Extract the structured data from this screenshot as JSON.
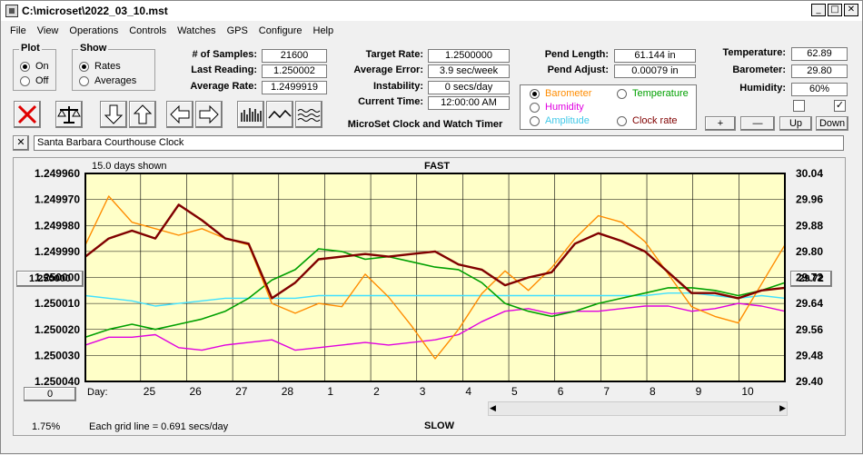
{
  "window": {
    "title": "C:\\microset\\2022_03_10.mst"
  },
  "menu": [
    "File",
    "View",
    "Operations",
    "Controls",
    "Watches",
    "GPS",
    "Configure",
    "Help"
  ],
  "plot_group": {
    "title": "Plot",
    "options": [
      "On",
      "Off"
    ],
    "selected": "On"
  },
  "show_group": {
    "title": "Show",
    "options": [
      "Rates",
      "Averages"
    ],
    "selected": "Rates"
  },
  "stats": {
    "samples_label": "# of Samples:",
    "samples": "21600",
    "last_label": "Last Reading:",
    "last": "1.250002",
    "avg_label": "Average Rate:",
    "avg": "1.2499919"
  },
  "targets": {
    "target_label": "Target Rate:",
    "target": "1.2500000",
    "error_label": "Average Error:",
    "error": "3.9 sec/week",
    "instab_label": "Instability:",
    "instab": "0 secs/day",
    "time_label": "Current Time:",
    "time": "12:00:00 AM"
  },
  "app_caption": "MicroSet Clock and Watch Timer",
  "pend": {
    "length_label": "Pend Length:",
    "length": "61.144 in",
    "adjust_label": "Pend Adjust:",
    "adjust": "0.00079 in"
  },
  "env": {
    "temp_label": "Temperature:",
    "temp": "62.89",
    "baro_label": "Barometer:",
    "baro": "29.80",
    "hum_label": "Humidity:",
    "hum": "60%"
  },
  "legend": {
    "barometer": "Barometer",
    "temperature": "Temperature",
    "humidity": "Humidity",
    "amplitude": "Amplitude",
    "clock_rate": "Clock rate",
    "selected": "Barometer"
  },
  "small_buttons": {
    "plus": "+",
    "minus": "—",
    "up": "Up",
    "down": "Down"
  },
  "checkboxes": {
    "left": "",
    "right": "✓"
  },
  "clock_name": "Santa Barbara Courthouse Clock",
  "close_x": "✕",
  "chart_header": {
    "days_shown": "15.0 days shown",
    "fast": "FAST",
    "slow": "SLOW",
    "grid_note": "Each grid line = 0.691 secs/day",
    "zoom": "1.75%",
    "day_label": "Day:"
  },
  "side_buttons": {
    "center_left": "1.250000",
    "center_right": "29.72",
    "offset": "0"
  },
  "colors": {
    "plot_bg": "#ffffc8",
    "barometer": "#ff8c00",
    "clock_rate": "#800000",
    "temperature": "#00a000",
    "humidity": "#e000e0",
    "amplitude": "#40e0ff"
  },
  "chart_data": {
    "type": "line",
    "title": "",
    "y_left_ticks": [
      "1.249960",
      "1.249970",
      "1.249980",
      "1.249990",
      "1.250000",
      "1.250010",
      "1.250020",
      "1.250030",
      "1.250040"
    ],
    "y_right_ticks": [
      "30.04",
      "29.96",
      "29.88",
      "29.80",
      "29.72",
      "29.64",
      "29.56",
      "29.48",
      "29.40"
    ],
    "x_ticks": [
      "25",
      "26",
      "27",
      "28",
      "1",
      "2",
      "3",
      "4",
      "5",
      "6",
      "7",
      "8",
      "9",
      "10"
    ],
    "ylim_left": [
      1.24996,
      1.25004
    ],
    "ylim_right": [
      29.4,
      30.04
    ],
    "x": [
      0,
      0.5,
      1,
      1.5,
      2,
      2.5,
      3,
      3.5,
      4,
      4.5,
      5,
      5.5,
      6,
      6.5,
      7,
      7.5,
      8,
      8.5,
      9,
      9.5,
      10,
      10.5,
      11,
      11.5,
      12,
      12.5,
      13,
      13.5,
      14,
      14.5,
      15
    ],
    "series": [
      {
        "name": "Barometer",
        "axis": "right",
        "values": [
          29.82,
          29.97,
          29.89,
          29.87,
          29.85,
          29.87,
          29.84,
          29.82,
          29.64,
          29.61,
          29.64,
          29.63,
          29.73,
          29.66,
          29.57,
          29.47,
          29.56,
          29.67,
          29.74,
          29.68,
          29.75,
          29.84,
          29.91,
          29.89,
          29.83,
          29.73,
          29.63,
          29.6,
          29.58,
          29.7,
          29.82
        ]
      },
      {
        "name": "Clock rate",
        "axis": "left",
        "values": [
          1.249992,
          1.249985,
          1.249982,
          1.249985,
          1.249972,
          1.249978,
          1.249985,
          1.249987,
          1.250008,
          1.250002,
          1.249993,
          1.249992,
          1.249991,
          1.249992,
          1.249991,
          1.24999,
          1.249995,
          1.249997,
          1.250003,
          1.25,
          1.249998,
          1.249987,
          1.249983,
          1.249986,
          1.24999,
          1.249998,
          1.250006,
          1.250006,
          1.250008,
          1.250005,
          1.250004
        ]
      },
      {
        "name": "Temperature",
        "axis": "left",
        "values": [
          1.250023,
          1.25002,
          1.250018,
          1.25002,
          1.250018,
          1.250016,
          1.250013,
          1.250008,
          1.250001,
          1.249997,
          1.249989,
          1.24999,
          1.249993,
          1.249992,
          1.249994,
          1.249996,
          1.249997,
          1.250002,
          1.25001,
          1.250013,
          1.250015,
          1.250013,
          1.25001,
          1.250008,
          1.250006,
          1.250004,
          1.250004,
          1.250005,
          1.250007,
          1.250005,
          1.250002
        ]
      },
      {
        "name": "Humidity",
        "axis": "left",
        "values": [
          1.250026,
          1.250023,
          1.250023,
          1.250022,
          1.250027,
          1.250028,
          1.250026,
          1.250025,
          1.250024,
          1.250028,
          1.250027,
          1.250026,
          1.250025,
          1.250026,
          1.250025,
          1.250024,
          1.250022,
          1.250017,
          1.250013,
          1.250012,
          1.250014,
          1.250013,
          1.250013,
          1.250012,
          1.250011,
          1.250011,
          1.250013,
          1.250012,
          1.25001,
          1.250011,
          1.250013
        ]
      },
      {
        "name": "Amplitude",
        "axis": "left",
        "values": [
          1.250007,
          1.250008,
          1.250009,
          1.250011,
          1.25001,
          1.250009,
          1.250008,
          1.250008,
          1.250008,
          1.250008,
          1.250007,
          1.250007,
          1.250007,
          1.250007,
          1.250007,
          1.250007,
          1.250007,
          1.250007,
          1.250007,
          1.250007,
          1.250007,
          1.250007,
          1.250007,
          1.250007,
          1.250007,
          1.250006,
          1.250006,
          1.250007,
          1.250008,
          1.250007,
          1.250008
        ]
      }
    ]
  }
}
